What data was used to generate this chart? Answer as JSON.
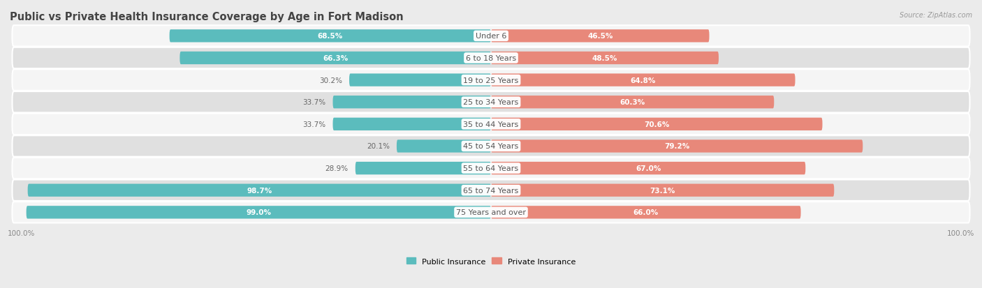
{
  "title": "Public vs Private Health Insurance Coverage by Age in Fort Madison",
  "source": "Source: ZipAtlas.com",
  "categories": [
    "Under 6",
    "6 to 18 Years",
    "19 to 25 Years",
    "25 to 34 Years",
    "35 to 44 Years",
    "45 to 54 Years",
    "55 to 64 Years",
    "65 to 74 Years",
    "75 Years and over"
  ],
  "public_values": [
    68.5,
    66.3,
    30.2,
    33.7,
    33.7,
    20.1,
    28.9,
    98.7,
    99.0
  ],
  "private_values": [
    46.5,
    48.5,
    64.8,
    60.3,
    70.6,
    79.2,
    67.0,
    73.1,
    66.0
  ],
  "public_color": "#5bbcbd",
  "private_color": "#e8887a",
  "bg_color": "#ebebeb",
  "row_bg_even": "#f5f5f5",
  "row_bg_odd": "#e0e0e0",
  "title_fontsize": 10.5,
  "label_fontsize": 8,
  "bar_label_fontsize": 7.5,
  "legend_fontsize": 8,
  "axis_label_fontsize": 7.5,
  "scale": 100
}
